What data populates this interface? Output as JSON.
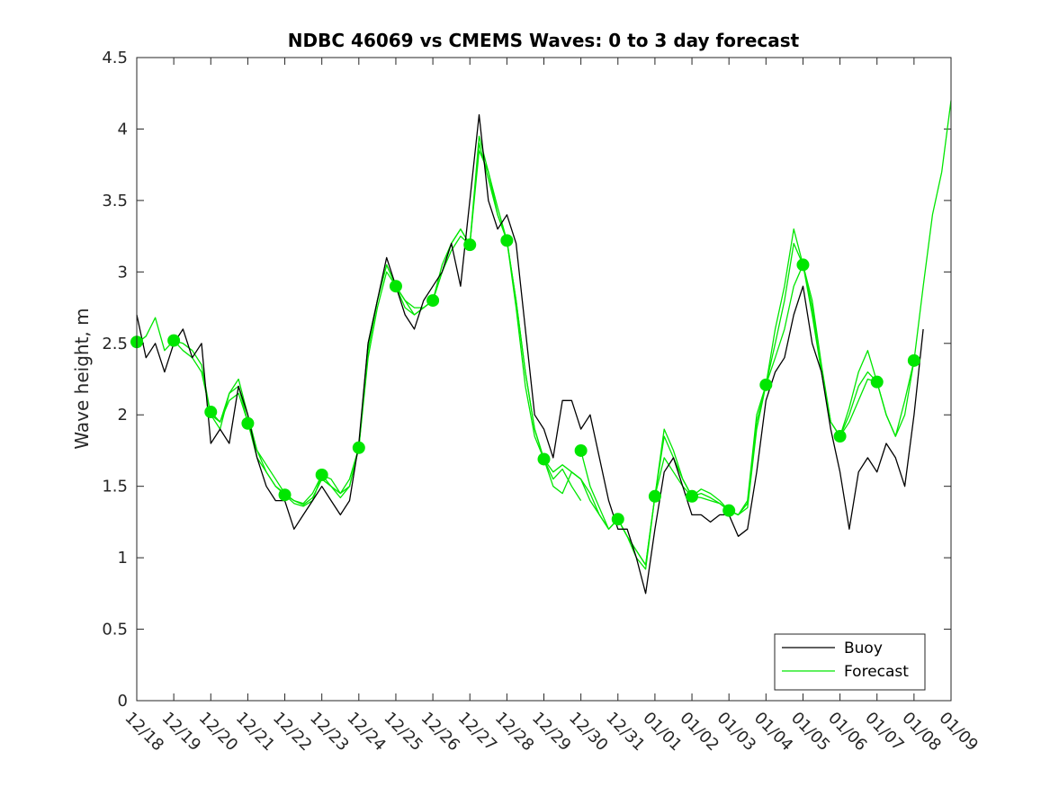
{
  "chart_data": {
    "type": "line",
    "title": "NDBC 46069 vs CMEMS Waves: 0 to 3 day forecast",
    "xlabel": "",
    "ylabel": "Wave height, m",
    "xlim": [
      0,
      22
    ],
    "ylim": [
      0,
      4.5
    ],
    "yticks": [
      0,
      0.5,
      1,
      1.5,
      2,
      2.5,
      3,
      3.5,
      4,
      4.5
    ],
    "ytick_labels": [
      "0",
      "0.5",
      "1",
      "1.5",
      "2",
      "2.5",
      "3",
      "3.5",
      "4",
      "4.5"
    ],
    "xtick_labels": [
      "12/18",
      "12/19",
      "12/20",
      "12/21",
      "12/22",
      "12/23",
      "12/24",
      "12/25",
      "12/26",
      "12/27",
      "12/28",
      "12/29",
      "12/30",
      "12/31",
      "01/01",
      "01/02",
      "01/03",
      "01/04",
      "01/05",
      "01/06",
      "01/07",
      "01/08",
      "01/09"
    ],
    "legend": {
      "position": "bottom-right",
      "entries": [
        "Buoy",
        "Forecast"
      ]
    },
    "colors": {
      "buoy": "#000000",
      "forecast": "#00e600",
      "markers": "#00e600",
      "axes": "#262626"
    },
    "series": [
      {
        "name": "Buoy",
        "x": [
          0.0,
          0.25,
          0.5,
          0.75,
          1.0,
          1.25,
          1.5,
          1.75,
          2.0,
          2.25,
          2.5,
          2.75,
          3.0,
          3.25,
          3.5,
          3.75,
          4.0,
          4.25,
          4.5,
          4.75,
          5.0,
          5.25,
          5.5,
          5.75,
          6.0,
          6.25,
          6.5,
          6.75,
          7.0,
          7.25,
          7.5,
          7.75,
          8.0,
          8.25,
          8.5,
          8.75,
          9.0,
          9.25,
          9.5,
          9.75,
          10.0,
          10.25,
          10.5,
          10.75,
          11.0,
          11.25,
          11.5,
          11.75,
          12.0,
          12.25,
          12.5,
          12.75,
          13.0,
          13.25,
          13.5,
          13.75,
          14.0,
          14.25,
          14.5,
          14.75,
          15.0,
          15.25,
          15.5,
          15.75,
          16.0,
          16.25,
          16.5,
          16.75,
          17.0,
          17.25,
          17.5,
          17.75,
          18.0,
          18.25,
          18.5,
          18.75,
          19.0,
          19.25,
          19.5,
          19.75,
          20.0,
          20.25,
          20.5,
          20.75,
          21.0,
          21.25
        ],
        "values": [
          2.7,
          2.4,
          2.5,
          2.3,
          2.5,
          2.6,
          2.4,
          2.5,
          1.8,
          1.9,
          1.8,
          2.2,
          2.0,
          1.7,
          1.5,
          1.4,
          1.4,
          1.2,
          1.3,
          1.4,
          1.5,
          1.4,
          1.3,
          1.4,
          1.8,
          2.5,
          2.8,
          3.1,
          2.9,
          2.7,
          2.6,
          2.8,
          2.9,
          3.0,
          3.2,
          2.9,
          3.5,
          4.1,
          3.5,
          3.3,
          3.4,
          3.2,
          2.6,
          2.0,
          1.9,
          1.7,
          2.1,
          2.1,
          1.9,
          2.0,
          1.7,
          1.4,
          1.2,
          1.2,
          1.0,
          0.75,
          1.2,
          1.6,
          1.7,
          1.5,
          1.3,
          1.3,
          1.25,
          1.3,
          1.3,
          1.15,
          1.2,
          1.6,
          2.1,
          2.3,
          2.4,
          2.7,
          2.9,
          2.5,
          2.3,
          1.9,
          1.6,
          1.2,
          1.6,
          1.7,
          1.6,
          1.8,
          1.7,
          1.5,
          2.0,
          2.6
        ]
      },
      {
        "name": "Forecast run 1",
        "x": [
          0.0,
          0.25,
          0.5,
          0.75,
          1.0,
          1.25,
          1.5,
          1.75,
          2.0,
          2.25,
          2.5,
          2.75,
          3.0
        ],
        "values": [
          2.5,
          2.55,
          2.68,
          2.45,
          2.52,
          2.45,
          2.4,
          2.3,
          2.0,
          1.95,
          2.1,
          2.15,
          1.95
        ]
      },
      {
        "name": "Forecast run 2",
        "x": [
          1.0,
          1.25,
          1.5,
          1.75,
          2.0,
          2.25,
          2.5,
          2.75,
          3.0,
          3.25,
          3.5,
          3.75,
          4.0
        ],
        "values": [
          2.52,
          2.5,
          2.45,
          2.35,
          2.0,
          1.9,
          2.15,
          2.25,
          2.0,
          1.75,
          1.65,
          1.55,
          1.45
        ]
      },
      {
        "name": "Forecast run 3",
        "x": [
          2.0,
          2.25,
          2.5,
          2.75,
          3.0,
          3.25,
          3.5,
          3.75,
          4.0,
          4.25,
          4.5,
          4.75,
          5.0
        ],
        "values": [
          2.02,
          1.95,
          2.15,
          2.2,
          1.95,
          1.7,
          1.6,
          1.5,
          1.45,
          1.4,
          1.38,
          1.45,
          1.58
        ]
      },
      {
        "name": "Forecast run 4",
        "x": [
          3.0,
          3.25,
          3.5,
          3.75,
          4.0,
          4.25,
          4.5,
          4.75,
          5.0,
          5.25,
          5.5,
          5.75,
          6.0
        ],
        "values": [
          1.94,
          1.75,
          1.6,
          1.5,
          1.44,
          1.4,
          1.37,
          1.42,
          1.55,
          1.5,
          1.42,
          1.5,
          1.77
        ]
      },
      {
        "name": "Forecast run 5",
        "x": [
          4.0,
          4.25,
          4.5,
          4.75,
          5.0,
          5.25,
          5.5,
          5.75,
          6.0,
          6.25,
          6.5,
          6.75,
          7.0
        ],
        "values": [
          1.44,
          1.38,
          1.36,
          1.4,
          1.58,
          1.55,
          1.45,
          1.5,
          1.77,
          2.4,
          2.75,
          3.0,
          2.9
        ]
      },
      {
        "name": "Forecast run 6",
        "x": [
          5.0,
          5.25,
          5.5,
          5.75,
          6.0,
          6.25,
          6.5,
          6.75,
          7.0,
          7.25,
          7.5,
          7.75,
          8.0
        ],
        "values": [
          1.58,
          1.5,
          1.45,
          1.55,
          1.77,
          2.45,
          2.8,
          3.05,
          2.9,
          2.8,
          2.75,
          2.75,
          2.8
        ]
      },
      {
        "name": "Forecast run 7",
        "x": [
          6.0,
          6.25,
          6.5,
          6.75,
          7.0,
          7.25,
          7.5,
          7.75,
          8.0,
          8.25,
          8.5,
          8.75,
          9.0
        ],
        "values": [
          1.77,
          2.5,
          2.8,
          3.05,
          2.9,
          2.75,
          2.7,
          2.75,
          2.8,
          3.0,
          3.2,
          3.3,
          3.19
        ]
      },
      {
        "name": "Forecast run 8",
        "x": [
          7.0,
          7.25,
          7.5,
          7.75,
          8.0,
          8.25,
          8.5,
          8.75,
          9.0,
          9.25,
          9.5,
          9.75,
          10.0
        ],
        "values": [
          2.9,
          2.8,
          2.7,
          2.75,
          2.8,
          3.0,
          3.15,
          3.25,
          3.19,
          3.85,
          3.7,
          3.45,
          3.22
        ]
      },
      {
        "name": "Forecast run 9",
        "x": [
          8.0,
          8.25,
          8.5,
          8.75,
          9.0,
          9.25,
          9.5,
          9.75,
          10.0,
          10.25,
          10.5,
          10.75,
          11.0
        ],
        "values": [
          2.8,
          3.05,
          3.2,
          3.3,
          3.19,
          3.95,
          3.7,
          3.4,
          3.22,
          2.8,
          2.3,
          1.9,
          1.69
        ]
      },
      {
        "name": "Forecast run 10",
        "x": [
          9.0,
          9.25,
          9.5,
          9.75,
          10.0,
          10.25,
          10.5,
          10.75,
          11.0,
          11.25,
          11.5,
          11.75,
          12.0
        ],
        "values": [
          3.19,
          3.9,
          3.65,
          3.4,
          3.22,
          2.75,
          2.2,
          1.85,
          1.69,
          1.55,
          1.62,
          1.5,
          1.4
        ]
      },
      {
        "name": "Forecast run 11",
        "x": [
          10.0,
          10.25,
          10.5,
          10.75,
          11.0,
          11.25,
          11.5,
          11.75,
          12.0,
          12.25,
          12.5,
          12.75,
          13.0
        ],
        "values": [
          3.22,
          2.8,
          2.3,
          1.9,
          1.69,
          1.6,
          1.65,
          1.6,
          1.55,
          1.45,
          1.3,
          1.2,
          1.27
        ]
      },
      {
        "name": "Forecast run 12",
        "x": [
          11.0,
          11.25,
          11.5,
          11.75,
          12.0,
          12.25,
          12.5,
          12.75,
          13.0,
          13.25,
          13.5,
          13.75,
          14.0
        ],
        "values": [
          1.69,
          1.5,
          1.45,
          1.6,
          1.55,
          1.4,
          1.3,
          1.2,
          1.27,
          1.15,
          1.05,
          0.95,
          1.43
        ]
      },
      {
        "name": "Forecast run 13",
        "x": [
          12.0,
          12.25,
          12.5,
          12.75,
          13.0,
          13.25,
          13.5,
          13.75,
          14.0,
          14.25,
          14.5,
          14.75,
          15.0
        ],
        "values": [
          1.75,
          1.5,
          1.35,
          1.2,
          1.27,
          1.15,
          1.0,
          0.92,
          1.43,
          1.9,
          1.75,
          1.55,
          1.43
        ]
      },
      {
        "name": "Forecast run 14",
        "x": [
          13.0,
          13.25,
          13.5,
          13.75,
          14.0,
          14.25,
          14.5,
          14.75,
          15.0,
          15.25,
          15.5,
          15.75,
          16.0
        ],
        "values": [
          1.27,
          1.15,
          1.05,
          0.95,
          1.43,
          1.85,
          1.7,
          1.55,
          1.43,
          1.42,
          1.4,
          1.38,
          1.33
        ]
      },
      {
        "name": "Forecast run 15",
        "x": [
          14.0,
          14.25,
          14.5,
          14.75,
          15.0,
          15.25,
          15.5,
          15.75,
          16.0,
          16.25,
          16.5,
          16.75,
          17.0
        ],
        "values": [
          1.43,
          1.7,
          1.6,
          1.5,
          1.43,
          1.45,
          1.42,
          1.38,
          1.33,
          1.3,
          1.35,
          1.9,
          2.21
        ]
      },
      {
        "name": "Forecast run 16",
        "x": [
          15.0,
          15.25,
          15.5,
          15.75,
          16.0,
          16.25,
          16.5,
          16.75,
          17.0,
          17.25,
          17.5,
          17.75,
          18.0
        ],
        "values": [
          1.43,
          1.48,
          1.45,
          1.4,
          1.33,
          1.3,
          1.38,
          1.95,
          2.21,
          2.4,
          2.6,
          2.9,
          3.05
        ]
      },
      {
        "name": "Forecast run 17",
        "x": [
          16.0,
          16.25,
          16.5,
          16.75,
          17.0,
          17.25,
          17.5,
          17.75,
          18.0,
          18.25,
          18.5,
          18.75,
          19.0
        ],
        "values": [
          1.33,
          1.3,
          1.4,
          2.0,
          2.21,
          2.5,
          2.8,
          3.2,
          3.05,
          2.7,
          2.3,
          1.95,
          1.85
        ]
      },
      {
        "name": "Forecast run 18",
        "x": [
          17.0,
          17.25,
          17.5,
          17.75,
          18.0,
          18.25,
          18.5,
          18.75,
          19.0,
          19.25,
          19.5,
          19.75,
          20.0
        ],
        "values": [
          2.21,
          2.6,
          2.9,
          3.3,
          3.05,
          2.75,
          2.3,
          1.95,
          1.85,
          2.05,
          2.3,
          2.45,
          2.23
        ]
      },
      {
        "name": "Forecast run 19",
        "x": [
          18.0,
          18.25,
          18.5,
          18.75,
          19.0,
          19.25,
          19.5,
          19.75,
          20.0,
          20.25,
          20.5,
          20.75,
          21.0
        ],
        "values": [
          3.05,
          2.8,
          2.35,
          1.95,
          1.85,
          2.0,
          2.2,
          2.3,
          2.23,
          2.0,
          1.85,
          2.0,
          2.38
        ]
      },
      {
        "name": "Forecast run 20",
        "x": [
          19.0,
          19.25,
          19.5,
          19.75,
          20.0,
          20.25,
          20.5,
          20.75,
          21.0,
          21.25,
          21.5,
          21.75,
          22.0
        ],
        "values": [
          1.85,
          1.95,
          2.1,
          2.25,
          2.23,
          2.0,
          1.85,
          2.1,
          2.38,
          2.9,
          3.4,
          3.7,
          4.2
        ]
      }
    ],
    "markers": {
      "x": [
        0,
        1,
        2,
        3,
        4,
        5,
        6,
        7,
        8,
        9,
        10,
        11,
        12,
        13,
        14,
        15,
        16,
        17,
        18,
        19,
        20,
        21
      ],
      "values": [
        2.51,
        2.52,
        2.02,
        1.94,
        1.44,
        1.58,
        1.77,
        2.9,
        2.8,
        3.19,
        3.22,
        1.69,
        1.75,
        1.27,
        1.43,
        1.43,
        1.33,
        2.21,
        3.05,
        1.85,
        2.23,
        2.38
      ]
    }
  }
}
